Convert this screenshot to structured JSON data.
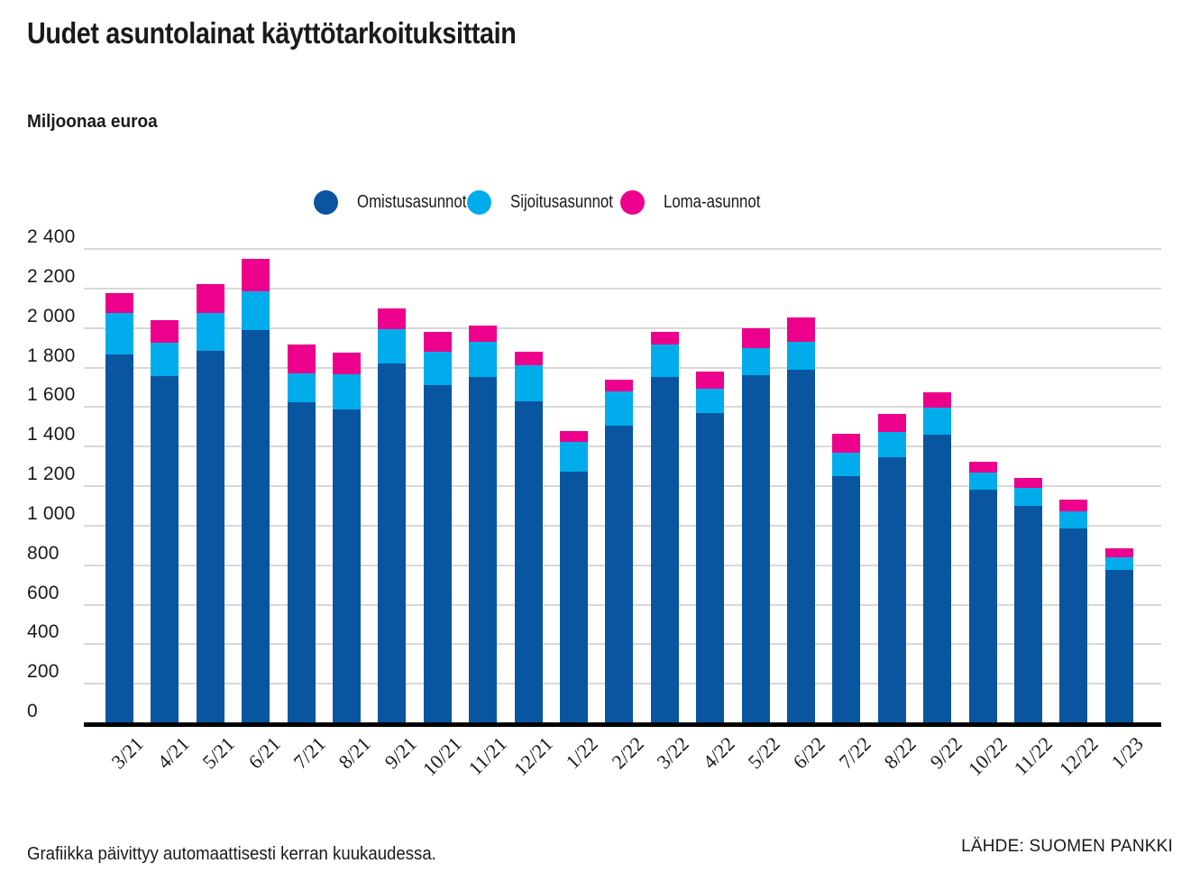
{
  "page": {
    "title": "Uudet asuntolainat käyttötarkoituksittain",
    "unit_label": "Miljoonaa euroa",
    "note": "Grafiikka päivittyy automaattisesti kerran kuukaudessa.",
    "source": "LÄHDE: SUOMEN PANKKI"
  },
  "colors": {
    "omistusasunnot": "#0A55A0",
    "sijoitusasunnot": "#00ACEB",
    "loma_asunnot": "#EC008C",
    "grid": "#D8D8D8",
    "axis": "#000000",
    "text": "#1A1A1A"
  },
  "chart_data": {
    "type": "bar",
    "stacked": true,
    "title": "Uudet asuntolainat käyttötarkoituksittain",
    "ylabel": "Miljoonaa euroa",
    "ylim": [
      0,
      2400
    ],
    "ytick_step": 200,
    "grid": true,
    "legend_position": "top",
    "categories": [
      "3/21",
      "4/21",
      "5/21",
      "6/21",
      "7/21",
      "8/21",
      "9/21",
      "10/21",
      "11/21",
      "12/21",
      "1/22",
      "2/22",
      "3/22",
      "4/22",
      "5/22",
      "6/22",
      "7/22",
      "8/22",
      "9/22",
      "10/22",
      "11/22",
      "12/22",
      "1/23"
    ],
    "series": [
      {
        "name": "Omistusasunnot",
        "color": "#0A55A0",
        "values": [
          1865,
          1755,
          1885,
          1990,
          1625,
          1590,
          1820,
          1710,
          1750,
          1630,
          1275,
          1505,
          1750,
          1570,
          1760,
          1790,
          1250,
          1345,
          1460,
          1180,
          1100,
          985,
          775
        ]
      },
      {
        "name": "Sijoitusasunnot",
        "color": "#00ACEB",
        "values": [
          210,
          170,
          190,
          195,
          145,
          175,
          175,
          170,
          180,
          180,
          150,
          175,
          165,
          125,
          140,
          140,
          120,
          130,
          135,
          90,
          90,
          85,
          65
        ]
      },
      {
        "name": "Loma-asunnot",
        "color": "#EC008C",
        "values": [
          100,
          115,
          145,
          165,
          145,
          110,
          105,
          100,
          80,
          70,
          55,
          60,
          65,
          85,
          100,
          125,
          95,
          90,
          80,
          55,
          50,
          60,
          45
        ]
      }
    ],
    "totals": [
      2175,
      2040,
      2220,
      2350,
      1915,
      1875,
      2100,
      1980,
      2010,
      1880,
      1480,
      1740,
      1980,
      1780,
      2000,
      2055,
      1465,
      1565,
      1675,
      1325,
      1240,
      1130,
      885
    ],
    "y_ticks": [
      {
        "value": 2400,
        "label": "2 400"
      },
      {
        "value": 2200,
        "label": "2 200"
      },
      {
        "value": 2000,
        "label": "2 000"
      },
      {
        "value": 1800,
        "label": "1 800"
      },
      {
        "value": 1600,
        "label": "1 600"
      },
      {
        "value": 1400,
        "label": "1 400"
      },
      {
        "value": 1200,
        "label": "1 200"
      },
      {
        "value": 1000,
        "label": "1 000"
      },
      {
        "value": 800,
        "label": "800"
      },
      {
        "value": 600,
        "label": "600"
      },
      {
        "value": 400,
        "label": "400"
      },
      {
        "value": 200,
        "label": "200"
      },
      {
        "value": 0,
        "label": "0"
      }
    ]
  }
}
